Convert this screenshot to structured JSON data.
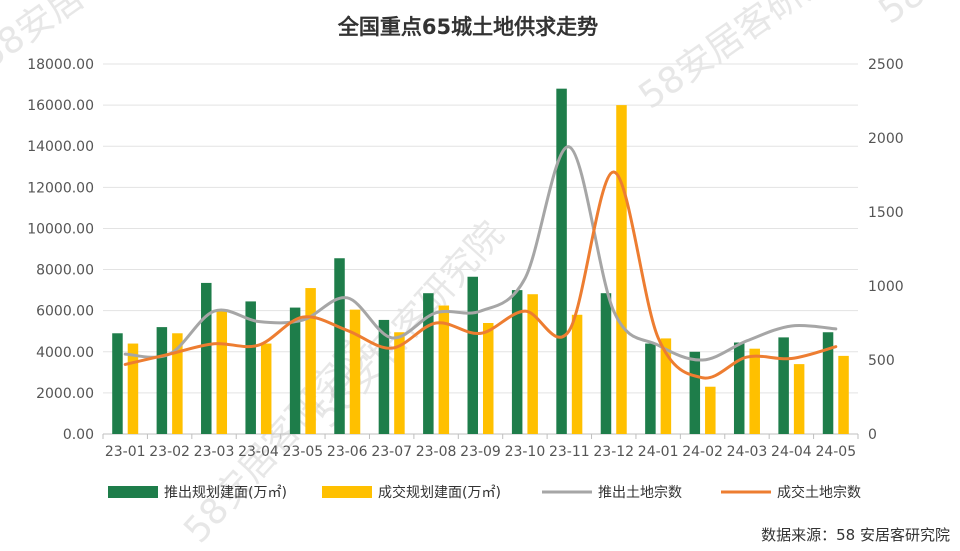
{
  "chart_data": {
    "type": "bar",
    "title": "全国重点65城土地供求走势",
    "source_note": "数据来源：58 安居客研究院",
    "watermark": "58安居客研究院",
    "categories": [
      "23-01",
      "23-02",
      "23-03",
      "23-04",
      "23-05",
      "23-06",
      "23-07",
      "23-08",
      "23-09",
      "23-10",
      "23-11",
      "23-12",
      "24-01",
      "24-02",
      "24-03",
      "24-04",
      "24-05"
    ],
    "y_left": {
      "min": 0,
      "max": 18000,
      "step": 2000,
      "ticks": [
        "0.00",
        "2000.00",
        "4000.00",
        "6000.00",
        "8000.00",
        "10000.00",
        "12000.00",
        "14000.00",
        "16000.00",
        "18000.00"
      ]
    },
    "y_right": {
      "min": 0,
      "max": 2500,
      "step": 500,
      "ticks": [
        "0",
        "500",
        "1000",
        "1500",
        "2000",
        "2500"
      ]
    },
    "gridlines": true,
    "legend_position": "bottom",
    "series": [
      {
        "name": "推出规划建面(万㎡)",
        "type": "bar",
        "axis": "left",
        "color": "#1e7d4a",
        "values": [
          4900,
          5200,
          7350,
          6450,
          6150,
          8550,
          5550,
          6850,
          7650,
          7000,
          16800,
          6850,
          4400,
          4000,
          4450,
          4700,
          4950
        ]
      },
      {
        "name": "成交规划建面(万㎡)",
        "type": "bar",
        "axis": "left",
        "color": "#ffc000",
        "values": [
          4400,
          4900,
          6050,
          4400,
          7100,
          6050,
          4950,
          6250,
          5400,
          6800,
          5800,
          16000,
          4650,
          2300,
          4150,
          3400,
          3800
        ]
      },
      {
        "name": "推出土地宗数",
        "type": "line",
        "axis": "right",
        "color": "#a6a6a6",
        "values": [
          540,
          540,
          830,
          760,
          770,
          920,
          650,
          820,
          830,
          1050,
          1940,
          830,
          600,
          500,
          630,
          730,
          710
        ]
      },
      {
        "name": "成交土地宗数",
        "type": "line",
        "axis": "right",
        "color": "#ed7d31",
        "values": [
          470,
          540,
          610,
          600,
          790,
          700,
          580,
          750,
          680,
          830,
          700,
          1770,
          650,
          380,
          520,
          510,
          590
        ]
      }
    ]
  }
}
